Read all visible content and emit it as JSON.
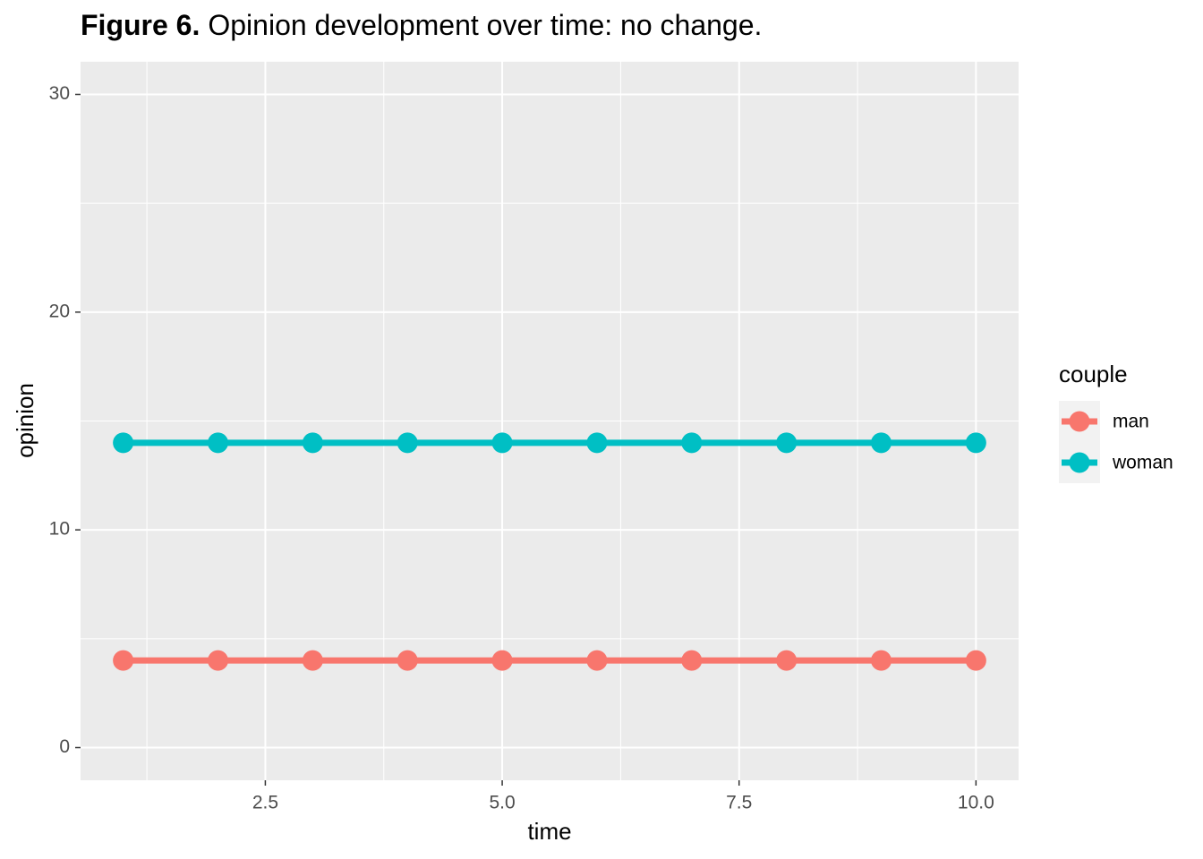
{
  "chart_data": {
    "type": "line",
    "title_label": "Figure 6.",
    "title": "Opinion development over time: no change.",
    "x_label": "time",
    "y_label": "opinion",
    "x": [
      1,
      2,
      3,
      4,
      5,
      6,
      7,
      8,
      9,
      10
    ],
    "series": [
      {
        "name": "man",
        "color": "#F8766D",
        "values": [
          4,
          4,
          4,
          4,
          4,
          4,
          4,
          4,
          4,
          4
        ]
      },
      {
        "name": "woman",
        "color": "#00BFC4",
        "values": [
          14,
          14,
          14,
          14,
          14,
          14,
          14,
          14,
          14,
          14
        ]
      }
    ],
    "xlim": [
      0.55,
      10.45
    ],
    "xticks": [
      {
        "value": 2.5,
        "label": "2.5"
      },
      {
        "value": 5,
        "label": "5.0"
      },
      {
        "value": 7.5,
        "label": "7.5"
      },
      {
        "value": 10,
        "label": "10.0"
      }
    ],
    "ylim": [
      -1.5,
      31.5
    ],
    "yticks": [
      0,
      10,
      20,
      30
    ],
    "grid": true,
    "legend_title": "couple",
    "legend_position": "right"
  }
}
